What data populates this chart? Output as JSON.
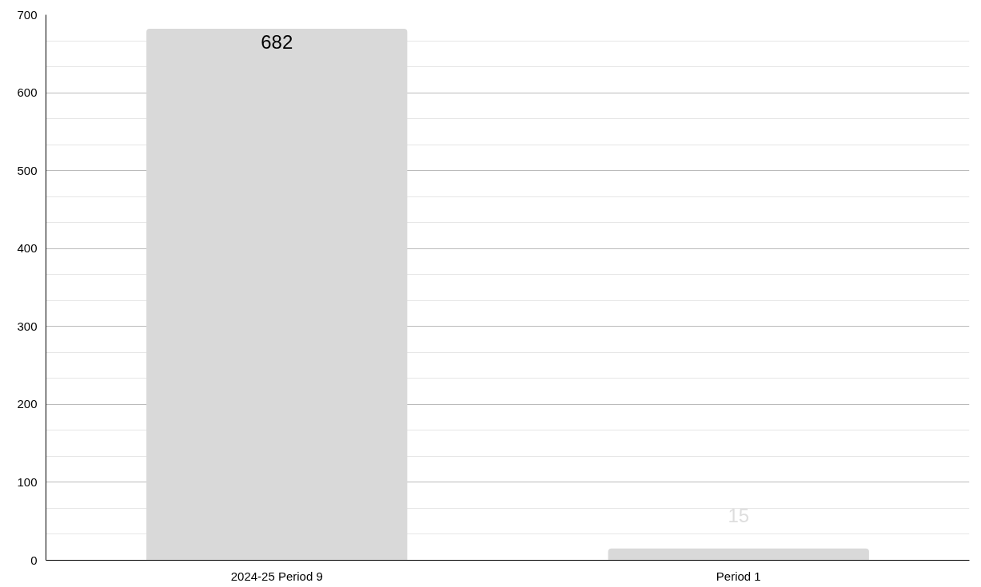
{
  "chart_data": {
    "type": "bar",
    "categories": [
      "2024-25 Period 9",
      "Period 1"
    ],
    "values": [
      682,
      15
    ],
    "color": "#d9d9d9",
    "ylim": [
      0,
      700
    ],
    "yticks": [
      0,
      100,
      200,
      300,
      400,
      500,
      600,
      700
    ],
    "grid": "y",
    "data_labels": true
  }
}
